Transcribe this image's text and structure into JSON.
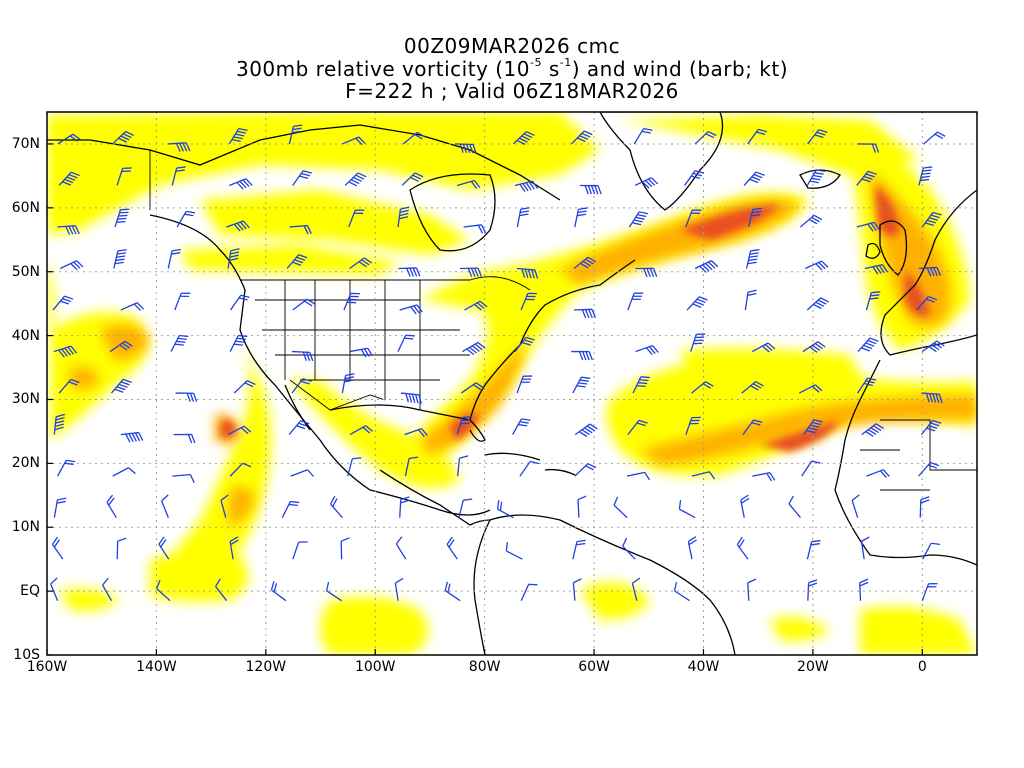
{
  "title": {
    "line1": "00Z09MAR2026 cmc",
    "line2_prefix": "300mb relative vorticity (10",
    "line2_exp1": "-5",
    "line2_mid": " s",
    "line2_exp2": "-1",
    "line2_suffix": ") and wind (barb; kt)",
    "line3": "F=222 h ; Valid 06Z18MAR2026"
  },
  "lat_labels": [
    "70N",
    "60N",
    "50N",
    "40N",
    "30N",
    "20N",
    "10N",
    "EQ",
    "10S"
  ],
  "lon_labels": [
    "160W",
    "140W",
    "120W",
    "100W",
    "80W",
    "60W",
    "40W",
    "20W",
    "0"
  ],
  "map": {
    "lon_range": [
      -160,
      10
    ],
    "lat_range": [
      -10,
      75
    ],
    "colors": {
      "shade_1": "#ffff00",
      "shade_2": "#f5e800",
      "shade_3": "#ffc000",
      "shade_4": "#ff9000",
      "shade_5": "#f06020",
      "shade_6": "#e04020",
      "barb": "#2040e0",
      "coast": "#000000",
      "grid": "#a0a0a0"
    }
  }
}
